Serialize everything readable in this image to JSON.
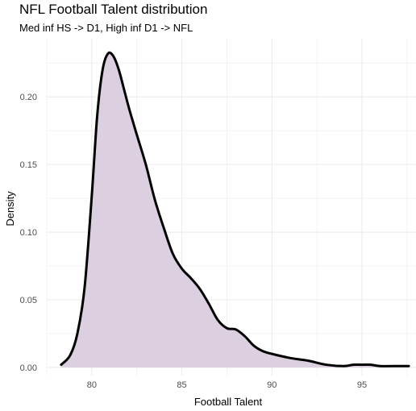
{
  "chart_data": {
    "type": "area",
    "title": "NFL Football Talent distribution",
    "subtitle": "Med inf HS -> D1,  High inf D1 -> NFL",
    "xlabel": "Football Talent",
    "ylabel": "Density",
    "xlim": [
      77.5,
      98.0
    ],
    "ylim": [
      -0.006,
      0.243
    ],
    "x_ticks": [
      80,
      85,
      90,
      95
    ],
    "y_ticks": [
      0.0,
      0.05,
      0.1,
      0.15,
      0.2
    ],
    "x_tick_labels": [
      "80",
      "85",
      "90",
      "95"
    ],
    "y_tick_labels": [
      "0.00",
      "0.05",
      "0.10",
      "0.15",
      "0.20"
    ],
    "grid": true,
    "colors": {
      "fill": "#dccfe0",
      "line": "#000000",
      "grid": "#ebebeb"
    },
    "x": [
      78.3,
      78.8,
      79.2,
      79.6,
      80.0,
      80.3,
      80.6,
      80.9,
      81.2,
      81.5,
      81.8,
      82.1,
      82.5,
      83.0,
      83.5,
      84.0,
      84.5,
      85.0,
      85.5,
      86.0,
      86.5,
      87.0,
      87.5,
      88.0,
      88.5,
      89.0,
      89.5,
      90.0,
      91.0,
      92.0,
      93.0,
      94.0,
      94.5,
      95.0,
      95.5,
      96.0,
      97.0,
      97.6
    ],
    "values": [
      0.002,
      0.009,
      0.025,
      0.059,
      0.127,
      0.186,
      0.22,
      0.232,
      0.23,
      0.22,
      0.205,
      0.19,
      0.172,
      0.15,
      0.124,
      0.103,
      0.084,
      0.073,
      0.066,
      0.058,
      0.047,
      0.035,
      0.029,
      0.028,
      0.023,
      0.016,
      0.012,
      0.01,
      0.007,
      0.005,
      0.002,
      0.001,
      0.002,
      0.002,
      0.002,
      0.001,
      0.001,
      0.001
    ]
  }
}
